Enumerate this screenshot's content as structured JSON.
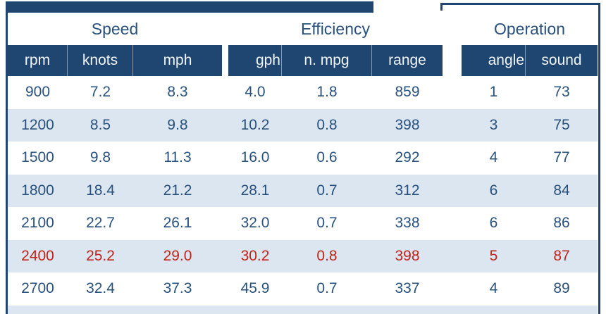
{
  "chart_data": {
    "type": "table",
    "groups": [
      "Speed",
      "Efficiency",
      "Operation"
    ],
    "columns": [
      "rpm",
      "knots",
      "mph",
      "gph",
      "n. mpg",
      "range",
      "angle",
      "sound"
    ],
    "rows": [
      {
        "values": [
          "900",
          "7.2",
          "8.3",
          "4.0",
          "1.8",
          "859",
          "1",
          "73"
        ],
        "highlight": false
      },
      {
        "values": [
          "1200",
          "8.5",
          "9.8",
          "10.2",
          "0.8",
          "398",
          "3",
          "75"
        ],
        "highlight": false
      },
      {
        "values": [
          "1500",
          "9.8",
          "11.3",
          "16.0",
          "0.6",
          "292",
          "4",
          "77"
        ],
        "highlight": false
      },
      {
        "values": [
          "1800",
          "18.4",
          "21.2",
          "28.1",
          "0.7",
          "312",
          "6",
          "84"
        ],
        "highlight": false
      },
      {
        "values": [
          "2100",
          "22.7",
          "26.1",
          "32.0",
          "0.7",
          "338",
          "6",
          "86"
        ],
        "highlight": false
      },
      {
        "values": [
          "2400",
          "25.2",
          "29.0",
          "30.2",
          "0.8",
          "398",
          "5",
          "87"
        ],
        "highlight": true
      },
      {
        "values": [
          "2700",
          "32.4",
          "37.3",
          "45.9",
          "0.7",
          "337",
          "4",
          "89"
        ],
        "highlight": false
      }
    ],
    "highlighted_row_rpm": "2400",
    "layout_hints": {
      "striped_rows": true,
      "group_header_position": "top",
      "highlight_text_color": "#C22318"
    }
  },
  "colors": {
    "header_navy": "#1F4571",
    "stripe_blue": "#DCE6F1",
    "text_navy": "#28517E",
    "highlight_red": "#C22318",
    "background": "#FFFFFF"
  }
}
